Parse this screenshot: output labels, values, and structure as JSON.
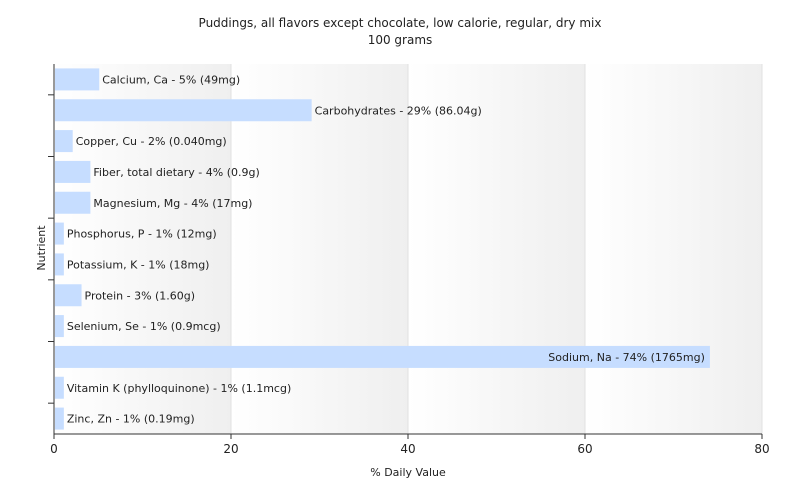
{
  "chart_data": {
    "type": "bar",
    "orientation": "horizontal",
    "title": "Puddings, all flavors except chocolate, low calorie, regular, dry mix",
    "subtitle": "100 grams",
    "xlabel": "% Daily Value",
    "ylabel": "Nutrient",
    "xlim": [
      0,
      80
    ],
    "xticks": [
      0,
      20,
      40,
      60,
      80
    ],
    "grid": true,
    "bar_color": "#c6ddff",
    "categories": [
      "Calcium, Ca",
      "Carbohydrates",
      "Copper, Cu",
      "Fiber, total dietary",
      "Magnesium, Mg",
      "Phosphorus, P",
      "Potassium, K",
      "Protein",
      "Selenium, Se",
      "Sodium, Na",
      "Vitamin K (phylloquinone)",
      "Zinc, Zn"
    ],
    "values": [
      5,
      29,
      2,
      4,
      4,
      1,
      1,
      3,
      1,
      74,
      1,
      1
    ],
    "labels": [
      "Calcium, Ca - 5% (49mg)",
      "Carbohydrates - 29% (86.04g)",
      "Copper, Cu - 2% (0.040mg)",
      "Fiber, total dietary - 4% (0.9g)",
      "Magnesium, Mg - 4% (17mg)",
      "Phosphorus, P - 1% (12mg)",
      "Potassium, K - 1% (18mg)",
      "Protein - 3% (1.60g)",
      "Selenium, Se - 1% (0.9mcg)",
      "Sodium, Na - 74% (1765mg)",
      "Vitamin K (phylloquinone) - 1% (1.1mcg)",
      "Zinc, Zn - 1% (0.19mg)"
    ]
  }
}
